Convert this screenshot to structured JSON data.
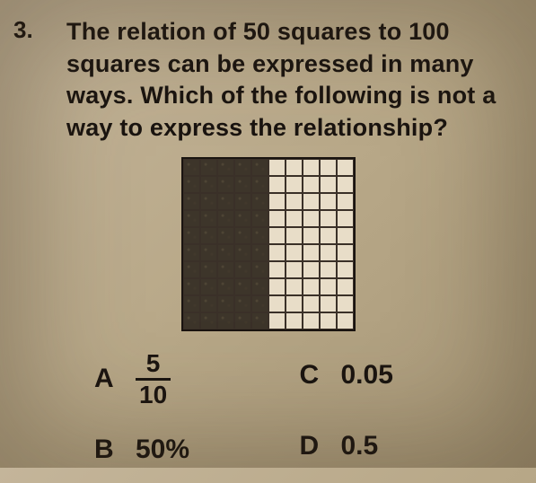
{
  "question": {
    "number": "3.",
    "text": "The relation of 50 squares to 100 squares can be expressed in many ways. Which of the following is not a way to express the relationship?"
  },
  "grid": {
    "rows": 10,
    "cols": 10,
    "filled_cols": 5,
    "filled_color": "#3d352a",
    "empty_color": "#e8ddc8",
    "border_color": "#1a1410"
  },
  "answers": {
    "a": {
      "letter": "A",
      "numerator": "5",
      "denominator": "10"
    },
    "b": {
      "letter": "B",
      "value": "50%"
    },
    "c": {
      "letter": "C",
      "value": "0.05"
    },
    "d": {
      "letter": "D",
      "value": "0.5"
    }
  },
  "styling": {
    "background_gradient": [
      "#c4b59a",
      "#b8a888",
      "#a89878"
    ],
    "text_color": "#1a1410",
    "question_fontsize": 27,
    "answer_fontsize": 30
  }
}
